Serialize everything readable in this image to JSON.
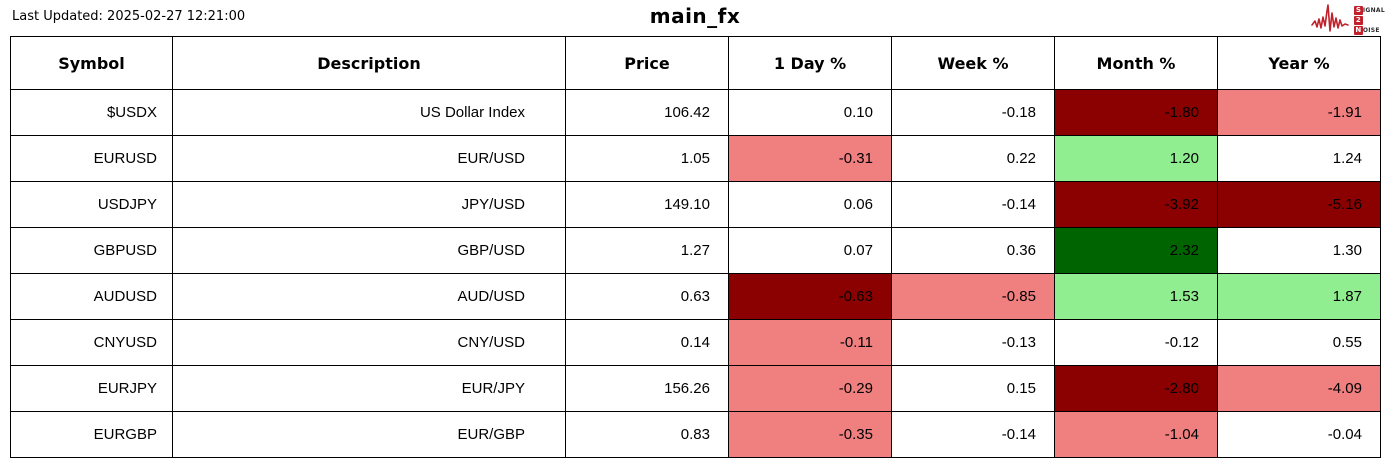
{
  "header": {
    "last_updated": "Last Updated: 2025-02-27 12:21:00",
    "title": "main_fx"
  },
  "logo": {
    "line1_box": "S",
    "line1_rest": "IGNAL",
    "line2_box": "2",
    "line3_box": "N",
    "line3_rest": "OISE",
    "accent_color": "#c0212a"
  },
  "colors": {
    "white": "#ffffff",
    "darkred": "#8b0000",
    "salmon": "#f08080",
    "lightgreen": "#90ee90",
    "darkgreen": "#006400"
  },
  "table": {
    "columns": [
      "Symbol",
      "Description",
      "Price",
      "1 Day %",
      "Week %",
      "Month %",
      "Year %"
    ],
    "rows": [
      {
        "symbol": "$USDX",
        "description": "US Dollar Index",
        "price": "106.42",
        "changes": [
          {
            "value": "0.10",
            "bg": "white"
          },
          {
            "value": "-0.18",
            "bg": "white"
          },
          {
            "value": "-1.80",
            "bg": "darkred"
          },
          {
            "value": "-1.91",
            "bg": "salmon"
          }
        ]
      },
      {
        "symbol": "EURUSD",
        "description": "EUR/USD",
        "price": "1.05",
        "changes": [
          {
            "value": "-0.31",
            "bg": "salmon"
          },
          {
            "value": "0.22",
            "bg": "white"
          },
          {
            "value": "1.20",
            "bg": "lightgreen"
          },
          {
            "value": "1.24",
            "bg": "white"
          }
        ]
      },
      {
        "symbol": "USDJPY",
        "description": "JPY/USD",
        "price": "149.10",
        "changes": [
          {
            "value": "0.06",
            "bg": "white"
          },
          {
            "value": "-0.14",
            "bg": "white"
          },
          {
            "value": "-3.92",
            "bg": "darkred"
          },
          {
            "value": "-5.16",
            "bg": "darkred"
          }
        ]
      },
      {
        "symbol": "GBPUSD",
        "description": "GBP/USD",
        "price": "1.27",
        "changes": [
          {
            "value": "0.07",
            "bg": "white"
          },
          {
            "value": "0.36",
            "bg": "white"
          },
          {
            "value": "2.32",
            "bg": "darkgreen"
          },
          {
            "value": "1.30",
            "bg": "white"
          }
        ]
      },
      {
        "symbol": "AUDUSD",
        "description": "AUD/USD",
        "price": "0.63",
        "changes": [
          {
            "value": "-0.63",
            "bg": "darkred"
          },
          {
            "value": "-0.85",
            "bg": "salmon"
          },
          {
            "value": "1.53",
            "bg": "lightgreen"
          },
          {
            "value": "1.87",
            "bg": "lightgreen"
          }
        ]
      },
      {
        "symbol": "CNYUSD",
        "description": "CNY/USD",
        "price": "0.14",
        "changes": [
          {
            "value": "-0.11",
            "bg": "salmon"
          },
          {
            "value": "-0.13",
            "bg": "white"
          },
          {
            "value": "-0.12",
            "bg": "white"
          },
          {
            "value": "0.55",
            "bg": "white"
          }
        ]
      },
      {
        "symbol": "EURJPY",
        "description": "EUR/JPY",
        "price": "156.26",
        "changes": [
          {
            "value": "-0.29",
            "bg": "salmon"
          },
          {
            "value": "0.15",
            "bg": "white"
          },
          {
            "value": "-2.80",
            "bg": "darkred"
          },
          {
            "value": "-4.09",
            "bg": "salmon"
          }
        ]
      },
      {
        "symbol": "EURGBP",
        "description": "EUR/GBP",
        "price": "0.83",
        "changes": [
          {
            "value": "-0.35",
            "bg": "salmon"
          },
          {
            "value": "-0.14",
            "bg": "white"
          },
          {
            "value": "-1.04",
            "bg": "salmon"
          },
          {
            "value": "-0.04",
            "bg": "white"
          }
        ]
      }
    ]
  },
  "chart_data": {
    "type": "table",
    "title": "main_fx",
    "last_updated": "2025-02-27 12:21:00",
    "columns": [
      "Symbol",
      "Description",
      "Price",
      "1 Day %",
      "Week %",
      "Month %",
      "Year %"
    ],
    "rows": [
      [
        "$USDX",
        "US Dollar Index",
        106.42,
        0.1,
        -0.18,
        -1.8,
        -1.91
      ],
      [
        "EURUSD",
        "EUR/USD",
        1.05,
        -0.31,
        0.22,
        1.2,
        1.24
      ],
      [
        "USDJPY",
        "JPY/USD",
        149.1,
        0.06,
        -0.14,
        -3.92,
        -5.16
      ],
      [
        "GBPUSD",
        "GBP/USD",
        1.27,
        0.07,
        0.36,
        2.32,
        1.3
      ],
      [
        "AUDUSD",
        "AUD/USD",
        0.63,
        -0.63,
        -0.85,
        1.53,
        1.87
      ],
      [
        "CNYUSD",
        "CNY/USD",
        0.14,
        -0.11,
        -0.13,
        -0.12,
        0.55
      ],
      [
        "EURJPY",
        "EUR/JPY",
        156.26,
        -0.29,
        0.15,
        -2.8,
        -4.09
      ],
      [
        "EURGBP",
        "EUR/GBP",
        0.83,
        -0.35,
        -0.14,
        -1.04,
        -0.04
      ]
    ],
    "cell_color_rule": "strong moves: darkred (#8b0000) / darkgreen (#006400); moderate moves: salmon (#f08080) / lightgreen (#90ee90); small moves: white"
  }
}
